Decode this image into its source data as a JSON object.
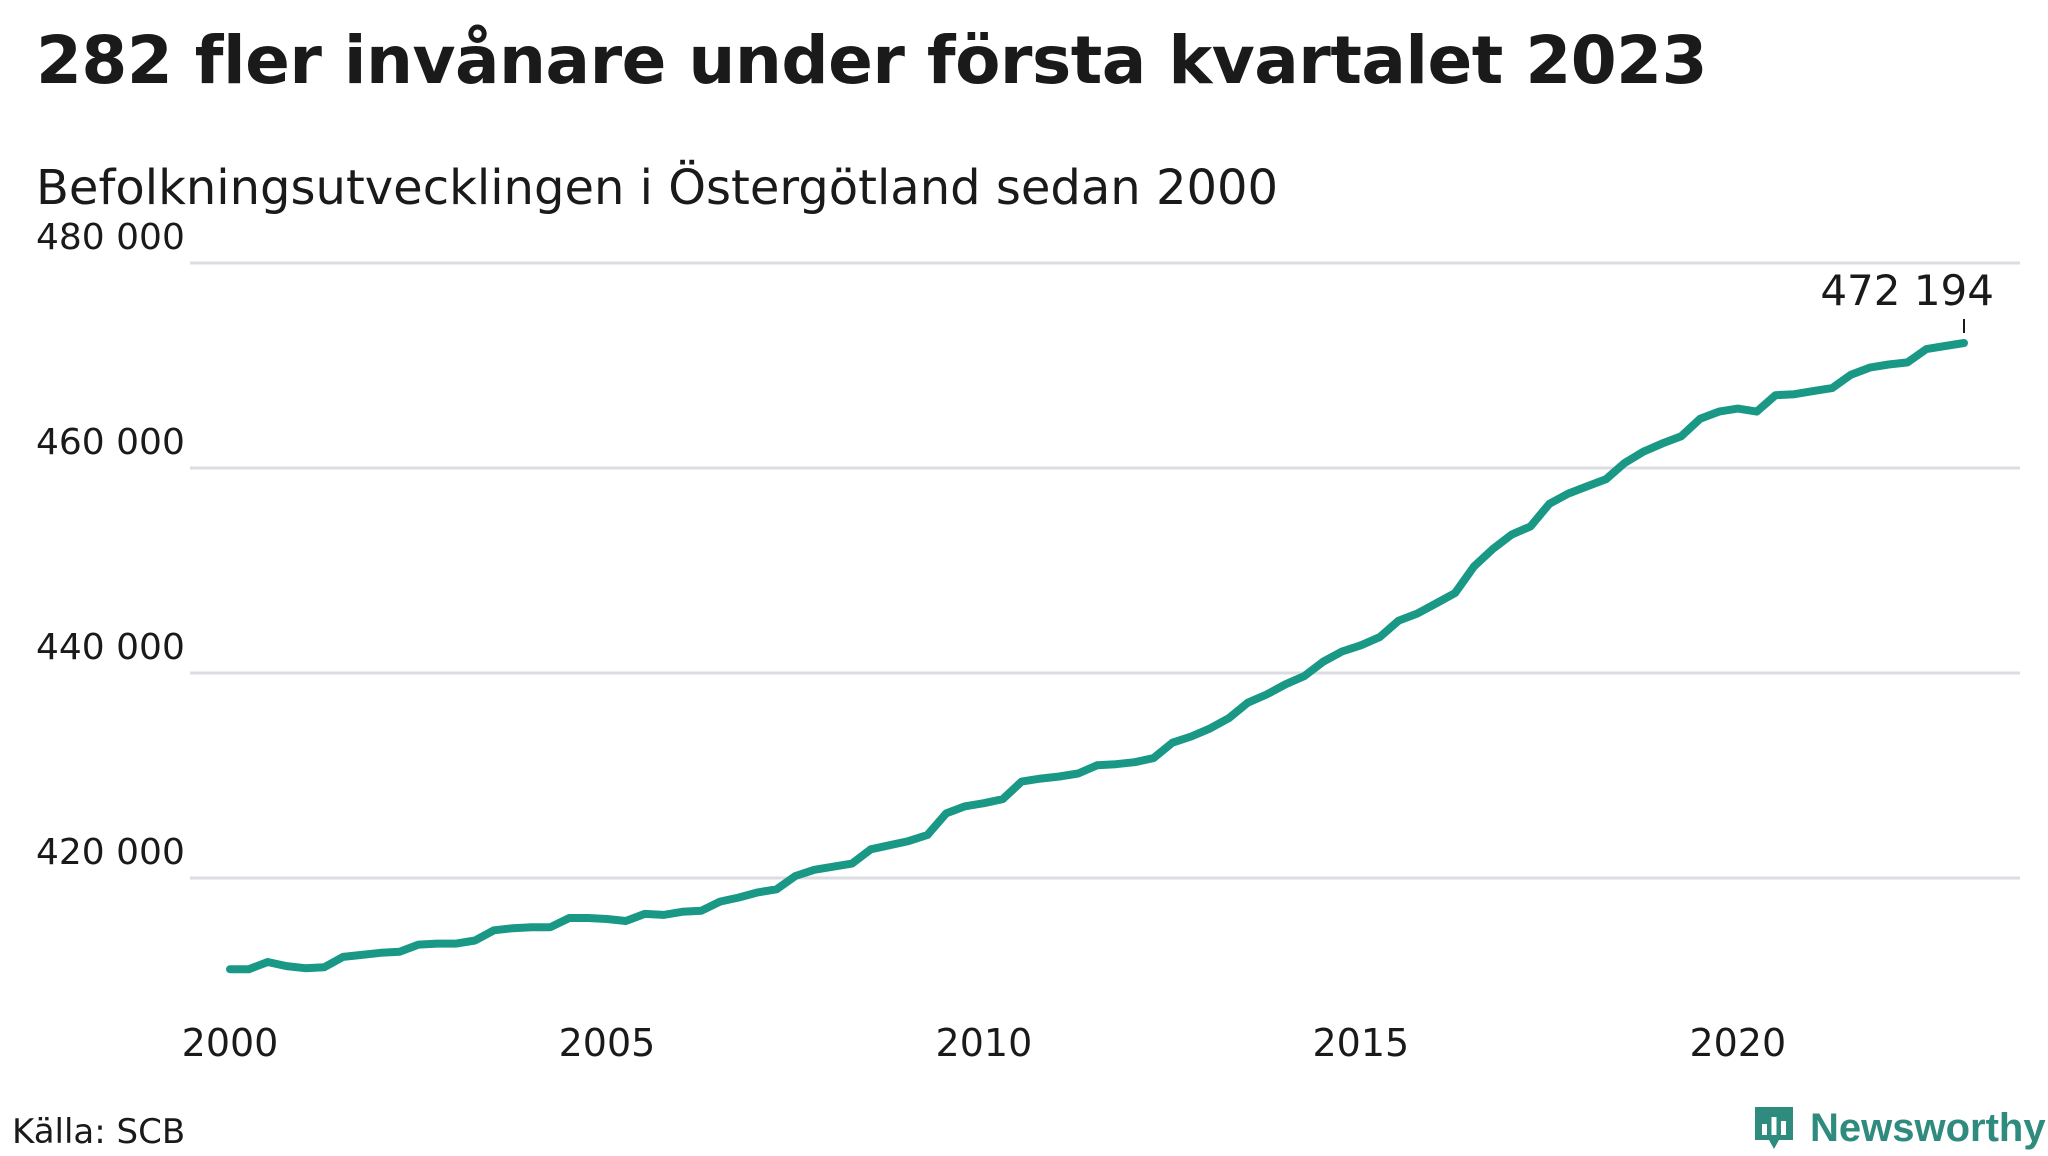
{
  "title": "282 fler invånare under första kvartalet 2023",
  "subtitle": "Befolkningsutvecklingen i Östergötland sedan 2000",
  "footer": {
    "source": "Källa: SCB",
    "brand": "Newsworthy"
  },
  "colors": {
    "line": "#1a9886",
    "grid": "#dcdde3",
    "brand": "#2e8b7e"
  },
  "chart_data": {
    "type": "line",
    "title": "282 fler invånare under första kvartalet 2023",
    "subtitle": "Befolkningsutvecklingen i Östergötland sedan 2000",
    "xlabel": "",
    "ylabel": "",
    "xlim": [
      2000,
      2023
    ],
    "ylim": [
      410000,
      480000
    ],
    "grid": true,
    "y_ticks": [
      {
        "value": 420000,
        "label": "420 000"
      },
      {
        "value": 440000,
        "label": "440 000"
      },
      {
        "value": 460000,
        "label": "460 000"
      },
      {
        "value": 480000,
        "label": "480 000"
      }
    ],
    "x_ticks": [
      {
        "value": 2000,
        "label": "2000"
      },
      {
        "value": 2005,
        "label": "2005"
      },
      {
        "value": 2010,
        "label": "2010"
      },
      {
        "value": 2015,
        "label": "2015"
      },
      {
        "value": 2020,
        "label": "2020"
      }
    ],
    "end_label": "472 194",
    "series": [
      {
        "x": [
          2000.0,
          2000.25,
          2000.5,
          2000.75,
          2001.0,
          2001.25,
          2001.5,
          2001.75,
          2002.0,
          2002.25,
          2002.5,
          2002.75,
          2003.0,
          2003.25,
          2003.5,
          2003.75,
          2004.0,
          2004.25,
          2004.5,
          2004.75,
          2005.0,
          2005.25,
          2005.5,
          2005.75,
          2006.0,
          2006.25,
          2006.5,
          2006.75,
          2007.0,
          2007.25,
          2007.5,
          2007.75,
          2008.0,
          2008.25,
          2008.5,
          2008.75,
          2009.0,
          2009.25,
          2009.5,
          2009.75,
          2010.0,
          2010.25,
          2010.5,
          2010.75,
          2011.0,
          2011.25,
          2011.5,
          2011.75,
          2012.0,
          2012.25,
          2012.5,
          2012.75,
          2013.0,
          2013.25,
          2013.5,
          2013.75,
          2014.0,
          2014.25,
          2014.5,
          2014.75,
          2015.0,
          2015.25,
          2015.5,
          2015.75,
          2016.0,
          2016.25,
          2016.5,
          2016.75,
          2017.0,
          2017.25,
          2017.5,
          2017.75,
          2018.0,
          2018.25,
          2018.5,
          2018.75,
          2019.0,
          2019.25,
          2019.5,
          2019.75,
          2020.0,
          2020.25,
          2020.5,
          2020.75,
          2021.0,
          2021.25,
          2021.5,
          2021.75,
          2022.0,
          2022.25,
          2022.5,
          2022.75,
          2023.0
        ],
        "values": [
          411100,
          411100,
          411800,
          411400,
          411200,
          411300,
          412300,
          412500,
          412700,
          412800,
          413500,
          413600,
          413600,
          413900,
          414900,
          415100,
          415200,
          415200,
          416100,
          416100,
          416000,
          415800,
          416500,
          416400,
          416700,
          416800,
          417700,
          418100,
          418600,
          418900,
          420200,
          420800,
          421100,
          421400,
          422800,
          423200,
          423600,
          424200,
          426300,
          427000,
          427300,
          427700,
          429400,
          429700,
          429900,
          430200,
          431000,
          431100,
          431300,
          431700,
          433200,
          433800,
          434600,
          435600,
          437100,
          437900,
          438900,
          439700,
          441100,
          442100,
          442700,
          443500,
          445100,
          445800,
          446800,
          447800,
          450400,
          452100,
          453500,
          454300,
          456500,
          457500,
          458200,
          458900,
          460500,
          461600,
          462400,
          463100,
          464800,
          465500,
          465800,
          465500,
          467100,
          467200,
          467500,
          467800,
          469100,
          469800,
          470100,
          470300,
          471600,
          471900,
          472194
        ]
      }
    ]
  }
}
